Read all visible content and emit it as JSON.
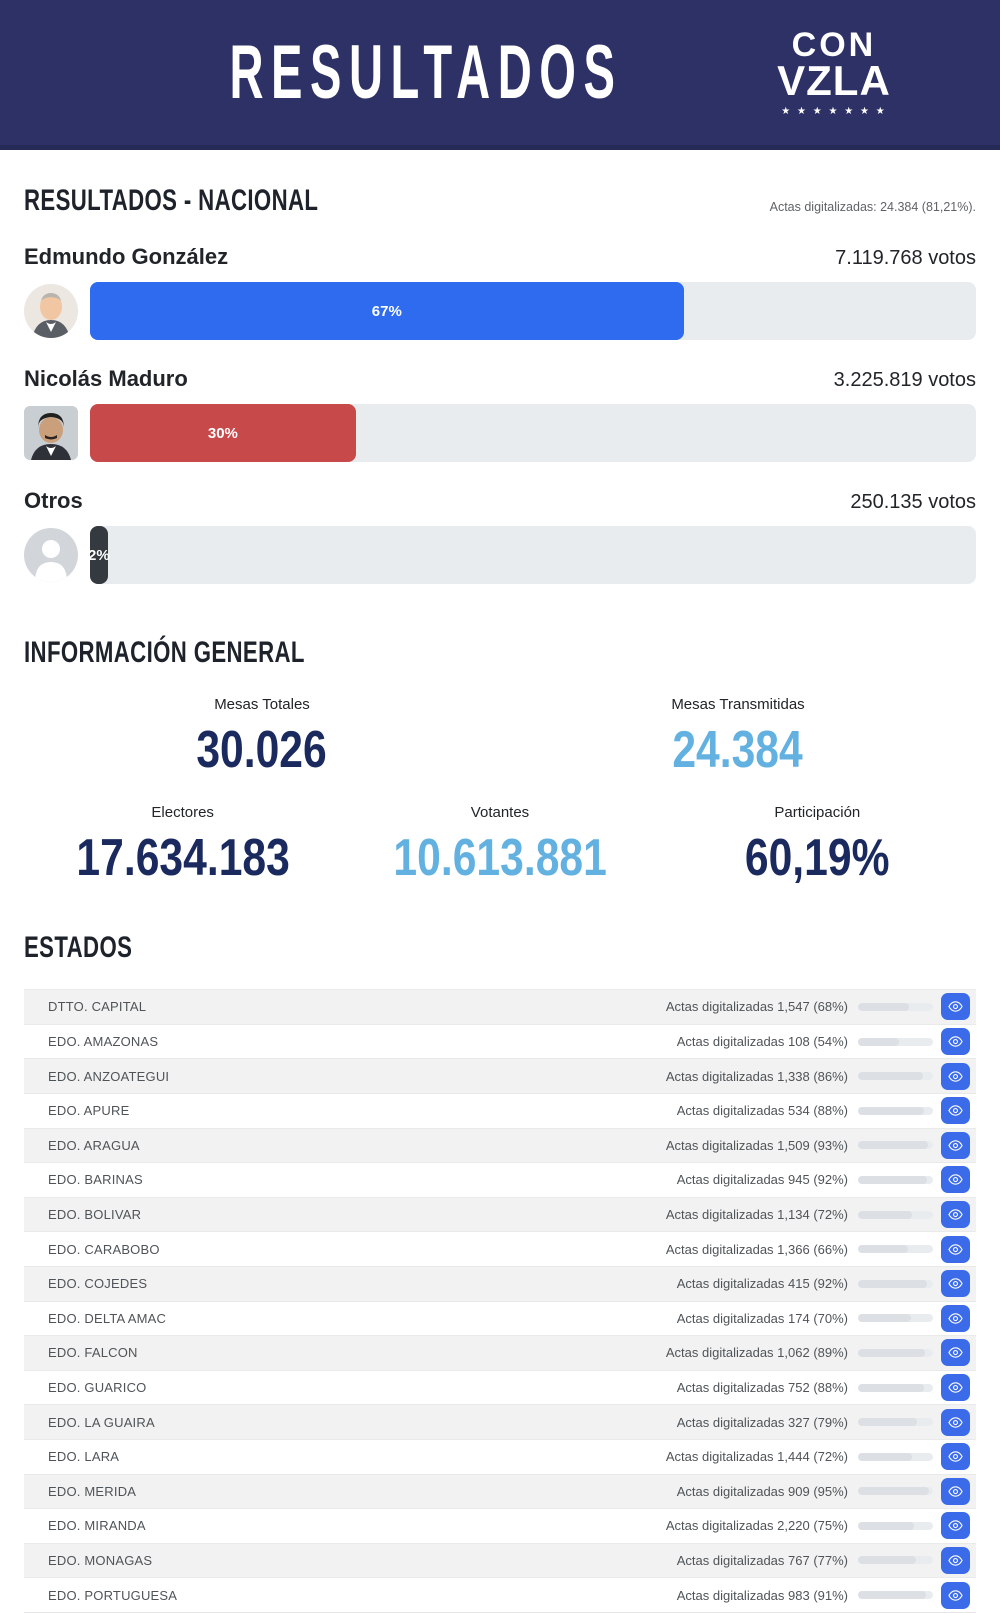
{
  "header": {
    "title": "RESULTADOS",
    "logo": {
      "line1": "CON",
      "line2": "VZLA",
      "stars": "★ ★ ★ ★ ★ ★ ★"
    }
  },
  "results": {
    "heading": "RESULTADOS - NACIONAL",
    "actas_note": "Actas digitalizadas: 24.384 (81,21%).",
    "candidates": [
      {
        "name": "Edmundo González",
        "votes": "7.119.768 votos",
        "pct": 67,
        "pct_label": "67%",
        "color": "#2e6bee"
      },
      {
        "name": "Nicolás Maduro",
        "votes": "3.225.819 votos",
        "pct": 30,
        "pct_label": "30%",
        "color": "#c8494a"
      },
      {
        "name": "Otros",
        "votes": "250.135 votos",
        "pct": 2,
        "pct_label": "2%",
        "color": "#343a40"
      }
    ]
  },
  "info": {
    "heading": "INFORMACIÓN GENERAL",
    "stats_row1": [
      {
        "label": "Mesas Totales",
        "value": "30.026",
        "tone": "navy"
      },
      {
        "label": "Mesas Transmitidas",
        "value": "24.384",
        "tone": "blue"
      }
    ],
    "stats_row2": [
      {
        "label": "Electores",
        "value": "17.634.183",
        "tone": "navy"
      },
      {
        "label": "Votantes",
        "value": "10.613.881",
        "tone": "blue"
      },
      {
        "label": "Participación",
        "value": "60,19%",
        "tone": "navy"
      }
    ]
  },
  "estados": {
    "heading": "ESTADOS",
    "rows": [
      {
        "name": "DTTO. CAPITAL",
        "actas": "Actas digitalizadas 1,547 (68%)",
        "pct": 68
      },
      {
        "name": "EDO. AMAZONAS",
        "actas": "Actas digitalizadas 108 (54%)",
        "pct": 54
      },
      {
        "name": "EDO. ANZOATEGUI",
        "actas": "Actas digitalizadas 1,338 (86%)",
        "pct": 86
      },
      {
        "name": "EDO. APURE",
        "actas": "Actas digitalizadas 534 (88%)",
        "pct": 88
      },
      {
        "name": "EDO. ARAGUA",
        "actas": "Actas digitalizadas 1,509 (93%)",
        "pct": 93
      },
      {
        "name": "EDO. BARINAS",
        "actas": "Actas digitalizadas 945 (92%)",
        "pct": 92
      },
      {
        "name": "EDO. BOLIVAR",
        "actas": "Actas digitalizadas 1,134 (72%)",
        "pct": 72
      },
      {
        "name": "EDO. CARABOBO",
        "actas": "Actas digitalizadas 1,366 (66%)",
        "pct": 66
      },
      {
        "name": "EDO. COJEDES",
        "actas": "Actas digitalizadas 415 (92%)",
        "pct": 92
      },
      {
        "name": "EDO. DELTA AMAC",
        "actas": "Actas digitalizadas 174 (70%)",
        "pct": 70
      },
      {
        "name": "EDO. FALCON",
        "actas": "Actas digitalizadas 1,062 (89%)",
        "pct": 89
      },
      {
        "name": "EDO. GUARICO",
        "actas": "Actas digitalizadas 752 (88%)",
        "pct": 88
      },
      {
        "name": "EDO. LA GUAIRA",
        "actas": "Actas digitalizadas 327 (79%)",
        "pct": 79
      },
      {
        "name": "EDO. LARA",
        "actas": "Actas digitalizadas 1,444 (72%)",
        "pct": 72
      },
      {
        "name": "EDO. MERIDA",
        "actas": "Actas digitalizadas 909 (95%)",
        "pct": 95
      },
      {
        "name": "EDO. MIRANDA",
        "actas": "Actas digitalizadas 2,220 (75%)",
        "pct": 75
      },
      {
        "name": "EDO. MONAGAS",
        "actas": "Actas digitalizadas 767 (77%)",
        "pct": 77
      },
      {
        "name": "EDO. PORTUGUESA",
        "actas": "Actas digitalizadas 983 (91%)",
        "pct": 91
      }
    ]
  },
  "colors": {
    "header_bg": "#2e3166",
    "bar_blue": "#2e6bee",
    "bar_red": "#c8494a",
    "bar_dark": "#343a40",
    "track_gray": "#e9ecef",
    "number_navy": "#1b2a5e",
    "number_blue": "#63b1e0",
    "eye_button_blue": "#3b6be8"
  }
}
